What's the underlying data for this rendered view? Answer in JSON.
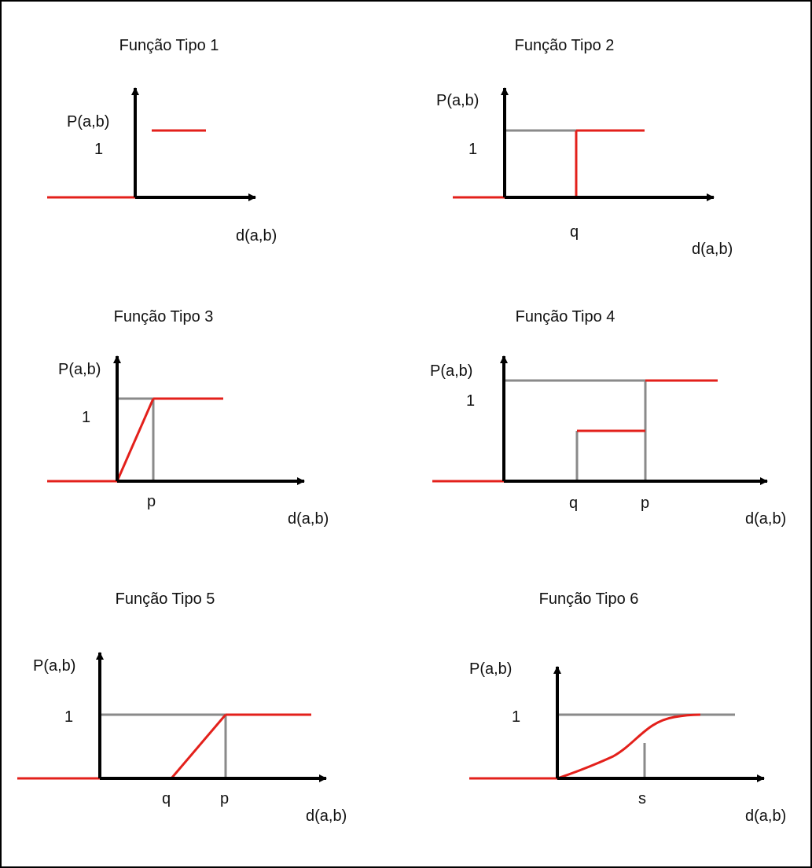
{
  "colors": {
    "function_line": "#e3201b",
    "guide_line": "#8a8a8a",
    "axis": "#000000"
  },
  "panels": [
    {
      "title": "Função Tipo 1",
      "y_label": "P(a,b)",
      "one_label": "1",
      "x_label": "d(a,b)"
    },
    {
      "title": "Função Tipo 2",
      "y_label": "P(a,b)",
      "one_label": "1",
      "x_label": "d(a,b)",
      "threshold_labels": [
        "q"
      ]
    },
    {
      "title": "Função Tipo 3",
      "y_label": "P(a,b)",
      "one_label": "1",
      "x_label": "d(a,b)",
      "threshold_labels": [
        "p"
      ]
    },
    {
      "title": "Função Tipo 4",
      "y_label": "P(a,b)",
      "one_label": "1",
      "x_label": "d(a,b)",
      "threshold_labels": [
        "q",
        "p"
      ]
    },
    {
      "title": "Função Tipo 5",
      "y_label": "P(a,b)",
      "one_label": "1",
      "x_label": "d(a,b)",
      "threshold_labels": [
        "q",
        "p"
      ]
    },
    {
      "title": "Função Tipo 6",
      "y_label": "P(a,b)",
      "one_label": "1",
      "x_label": "d(a,b)",
      "threshold_labels": [
        "s"
      ]
    }
  ]
}
